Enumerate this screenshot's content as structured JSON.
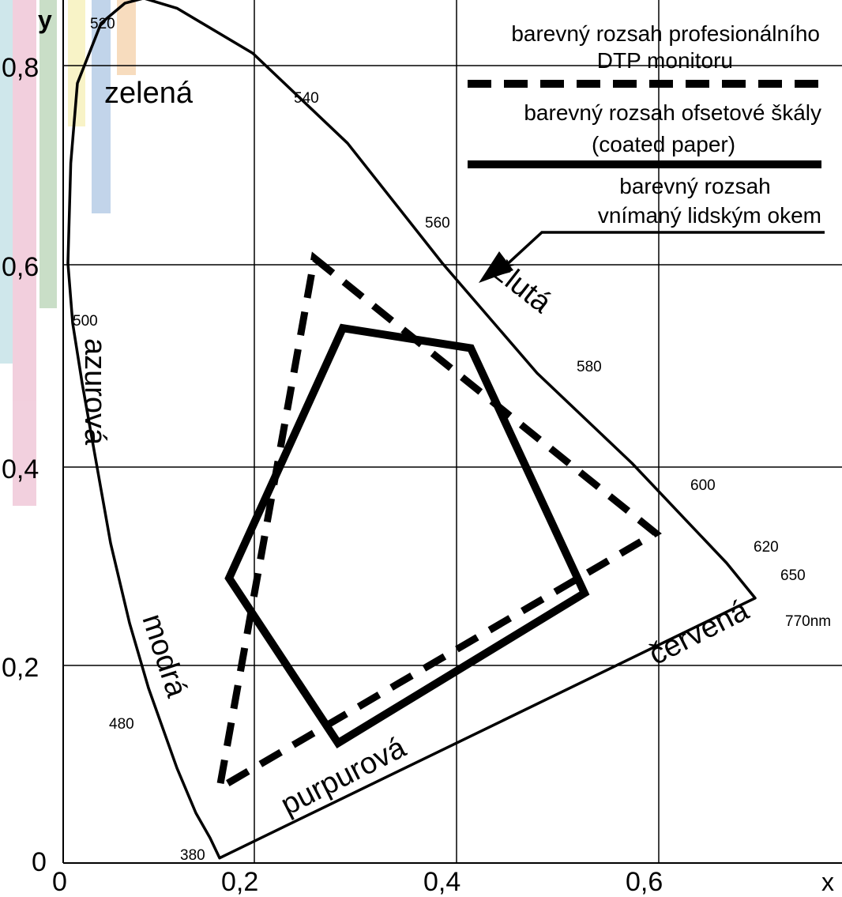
{
  "axes": {
    "x_label": "x",
    "y_label": "y",
    "x_ticks": [
      {
        "value": 0,
        "label": "0"
      },
      {
        "value": 0.2,
        "label": "0,2"
      },
      {
        "value": 0.4,
        "label": "0,4"
      },
      {
        "value": 0.6,
        "label": "0,6"
      }
    ],
    "y_ticks": [
      {
        "value": 0,
        "label": "0"
      },
      {
        "value": 0.2,
        "label": "0,2"
      },
      {
        "value": 0.4,
        "label": "0,4"
      },
      {
        "value": 0.6,
        "label": "0,6"
      },
      {
        "value": 0.8,
        "label": "0,8"
      }
    ],
    "xlim": [
      0,
      0.78
    ],
    "ylim": [
      0,
      0.88
    ]
  },
  "legend": {
    "monitor_label_1": "barevný rozsah profesionálního",
    "monitor_label_2": "DTP monitoru",
    "offset_label_1": "barevný rozsah ofsetové škály",
    "offset_label_2": "(coated paper)",
    "human_label_1": "barevný rozsah",
    "human_label_2": "vnímaný lidským okem"
  },
  "wavelength_labels": {
    "nm380": "380",
    "nm480": "480",
    "nm500": "500",
    "nm520": "520",
    "nm540": "540",
    "nm560": "560",
    "nm580": "580",
    "nm600": "600",
    "nm620": "620",
    "nm650": "650",
    "nm770": "770nm"
  },
  "color_names": {
    "green": "zelená",
    "cyan": "azurová",
    "blue": "modrá",
    "yellow": "žlutá",
    "red": "červená",
    "purple": "purpurová"
  },
  "gamuts": {
    "monitor_dtp": [
      [
        0.265,
        0.605
      ],
      [
        0.625,
        0.33
      ],
      [
        0.165,
        0.075
      ]
    ],
    "offset_coated": [
      [
        0.295,
        0.535
      ],
      [
        0.43,
        0.515
      ],
      [
        0.55,
        0.27
      ],
      [
        0.29,
        0.12
      ],
      [
        0.175,
        0.285
      ]
    ],
    "human_locus": [
      [
        0.165,
        0.005
      ],
      [
        0.155,
        0.025
      ],
      [
        0.14,
        0.05
      ],
      [
        0.12,
        0.095
      ],
      [
        0.09,
        0.175
      ],
      [
        0.07,
        0.24
      ],
      [
        0.05,
        0.32
      ],
      [
        0.035,
        0.4
      ],
      [
        0.02,
        0.48
      ],
      [
        0.01,
        0.54
      ],
      [
        0.005,
        0.6
      ],
      [
        0.008,
        0.7
      ],
      [
        0.015,
        0.78
      ],
      [
        0.04,
        0.84
      ],
      [
        0.065,
        0.86
      ],
      [
        0.085,
        0.865
      ],
      [
        0.12,
        0.855
      ],
      [
        0.2,
        0.81
      ],
      [
        0.3,
        0.72
      ],
      [
        0.4,
        0.6
      ],
      [
        0.5,
        0.49
      ],
      [
        0.6,
        0.4
      ],
      [
        0.66,
        0.34
      ],
      [
        0.7,
        0.3
      ],
      [
        0.73,
        0.265
      ]
    ]
  }
}
